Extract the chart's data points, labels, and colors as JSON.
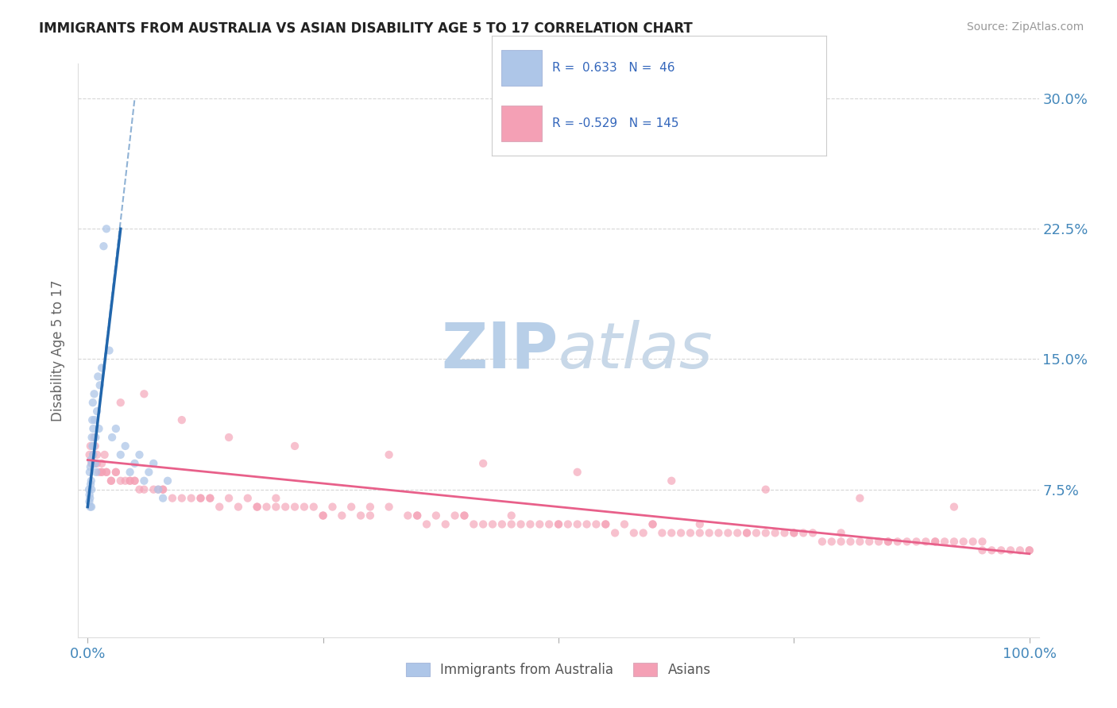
{
  "title": "IMMIGRANTS FROM AUSTRALIA VS ASIAN DISABILITY AGE 5 TO 17 CORRELATION CHART",
  "source": "Source: ZipAtlas.com",
  "ylabel": "Disability Age 5 to 17",
  "xlim": [
    -1,
    101
  ],
  "ylim": [
    -1,
    32
  ],
  "blue_color": "#aec6e8",
  "pink_color": "#f4a0b5",
  "blue_line_color": "#2166ac",
  "pink_line_color": "#e8608a",
  "title_color": "#222222",
  "axis_label_color": "#666666",
  "tick_color": "#4488bb",
  "watermark_color": "#ddeeff",
  "blue_scatter_x": [
    0.15,
    0.18,
    0.2,
    0.22,
    0.25,
    0.28,
    0.3,
    0.32,
    0.35,
    0.38,
    0.4,
    0.42,
    0.45,
    0.48,
    0.5,
    0.52,
    0.55,
    0.58,
    0.6,
    0.65,
    0.7,
    0.75,
    0.8,
    0.85,
    0.9,
    1.0,
    1.1,
    1.2,
    1.3,
    1.5,
    1.7,
    2.0,
    2.3,
    2.6,
    3.0,
    3.5,
    4.0,
    4.5,
    5.0,
    5.5,
    6.0,
    6.5,
    7.0,
    7.5,
    8.0,
    8.5
  ],
  "blue_scatter_y": [
    7.5,
    6.8,
    7.2,
    8.5,
    7.0,
    6.5,
    8.8,
    7.8,
    9.2,
    8.0,
    6.5,
    7.5,
    10.5,
    9.0,
    11.5,
    10.0,
    12.5,
    9.5,
    11.0,
    10.0,
    13.0,
    11.5,
    9.0,
    10.5,
    8.5,
    12.0,
    14.0,
    11.0,
    13.5,
    14.5,
    21.5,
    22.5,
    15.5,
    10.5,
    11.0,
    9.5,
    10.0,
    8.5,
    9.0,
    9.5,
    8.0,
    8.5,
    9.0,
    7.5,
    7.0,
    8.0
  ],
  "pink_scatter_x": [
    0.2,
    0.4,
    0.6,
    0.8,
    1.0,
    1.2,
    1.5,
    1.8,
    2.0,
    2.5,
    3.0,
    3.5,
    4.0,
    4.5,
    5.0,
    5.5,
    6.0,
    7.0,
    8.0,
    9.0,
    10.0,
    11.0,
    12.0,
    13.0,
    14.0,
    15.0,
    16.0,
    17.0,
    18.0,
    19.0,
    20.0,
    21.0,
    22.0,
    23.0,
    24.0,
    25.0,
    26.0,
    27.0,
    28.0,
    29.0,
    30.0,
    32.0,
    34.0,
    35.0,
    36.0,
    37.0,
    38.0,
    39.0,
    40.0,
    41.0,
    42.0,
    43.0,
    44.0,
    45.0,
    46.0,
    47.0,
    48.0,
    49.0,
    50.0,
    51.0,
    52.0,
    53.0,
    54.0,
    55.0,
    56.0,
    57.0,
    58.0,
    59.0,
    60.0,
    61.0,
    62.0,
    63.0,
    64.0,
    65.0,
    66.0,
    67.0,
    68.0,
    69.0,
    70.0,
    71.0,
    72.0,
    73.0,
    74.0,
    75.0,
    76.0,
    77.0,
    78.0,
    79.0,
    80.0,
    81.0,
    82.0,
    83.0,
    84.0,
    85.0,
    86.0,
    87.0,
    88.0,
    89.0,
    90.0,
    91.0,
    92.0,
    93.0,
    94.0,
    95.0,
    96.0,
    97.0,
    98.0,
    99.0,
    100.0,
    0.3,
    0.5,
    0.7,
    1.5,
    2.5,
    4.5,
    7.5,
    12.0,
    18.0,
    25.0,
    35.0,
    45.0,
    55.0,
    65.0,
    75.0,
    85.0,
    95.0,
    1.0,
    2.0,
    3.0,
    5.0,
    8.0,
    13.0,
    20.0,
    30.0,
    40.0,
    50.0,
    60.0,
    70.0,
    80.0,
    90.0,
    100.0,
    0.8,
    1.5,
    3.5,
    6.0,
    10.0,
    15.0,
    22.0,
    32.0,
    42.0,
    52.0,
    62.0,
    72.0,
    82.0,
    92.0
  ],
  "pink_scatter_y": [
    9.5,
    9.0,
    9.5,
    9.0,
    9.0,
    8.5,
    8.5,
    9.5,
    8.5,
    8.0,
    8.5,
    8.0,
    8.0,
    8.0,
    8.0,
    7.5,
    7.5,
    7.5,
    7.5,
    7.0,
    7.0,
    7.0,
    7.0,
    7.0,
    6.5,
    7.0,
    6.5,
    7.0,
    6.5,
    6.5,
    6.5,
    6.5,
    6.5,
    6.5,
    6.5,
    6.0,
    6.5,
    6.0,
    6.5,
    6.0,
    6.0,
    6.5,
    6.0,
    6.0,
    5.5,
    6.0,
    5.5,
    6.0,
    6.0,
    5.5,
    5.5,
    5.5,
    5.5,
    5.5,
    5.5,
    5.5,
    5.5,
    5.5,
    5.5,
    5.5,
    5.5,
    5.5,
    5.5,
    5.5,
    5.0,
    5.5,
    5.0,
    5.0,
    5.5,
    5.0,
    5.0,
    5.0,
    5.0,
    5.0,
    5.0,
    5.0,
    5.0,
    5.0,
    5.0,
    5.0,
    5.0,
    5.0,
    5.0,
    5.0,
    5.0,
    5.0,
    4.5,
    4.5,
    5.0,
    4.5,
    4.5,
    4.5,
    4.5,
    4.5,
    4.5,
    4.5,
    4.5,
    4.5,
    4.5,
    4.5,
    4.5,
    4.5,
    4.5,
    4.5,
    4.0,
    4.0,
    4.0,
    4.0,
    4.0,
    10.0,
    9.0,
    10.5,
    8.5,
    8.0,
    8.0,
    7.5,
    7.0,
    6.5,
    6.0,
    6.0,
    6.0,
    5.5,
    5.5,
    5.0,
    4.5,
    4.0,
    9.5,
    8.5,
    8.5,
    8.0,
    7.5,
    7.0,
    7.0,
    6.5,
    6.0,
    5.5,
    5.5,
    5.0,
    4.5,
    4.5,
    4.0,
    10.0,
    9.0,
    12.5,
    13.0,
    11.5,
    10.5,
    10.0,
    9.5,
    9.0,
    8.5,
    8.0,
    7.5,
    7.0,
    6.5
  ],
  "blue_trendline_x0": 0,
  "blue_trendline_y0": 6.5,
  "blue_trendline_x1": 3.5,
  "blue_trendline_y1": 22.5,
  "blue_dash_x0": 0,
  "blue_dash_y0": 6.5,
  "blue_dash_x1": 5.0,
  "blue_dash_y1": 30.0,
  "pink_trendline_x0": 0,
  "pink_trendline_y0": 9.2,
  "pink_trendline_x1": 100,
  "pink_trendline_y1": 3.8
}
